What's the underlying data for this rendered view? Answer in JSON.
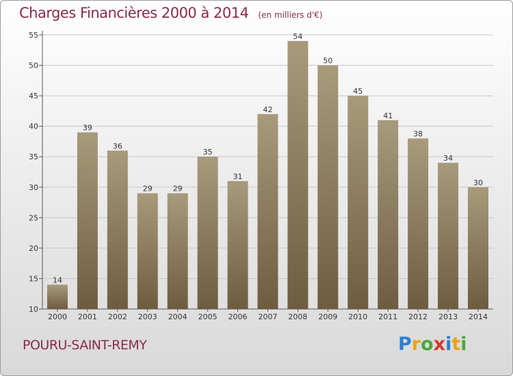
{
  "header": {
    "title": "Charges Financières 2000 à 2014",
    "subtitle": "(en milliers d'€)"
  },
  "footer": {
    "commune": "POURU-SAINT-REMY",
    "logo_letters": [
      "P",
      "r",
      "o",
      "x",
      "i",
      "t",
      "i"
    ],
    "logo_colors": [
      "#2a7fd0",
      "#e8a31a",
      "#49a83d",
      "#d53a2b",
      "#2a7fd0",
      "#e8a31a",
      "#49a83d"
    ]
  },
  "chart_data": {
    "type": "bar",
    "title": "Charges Financières 2000 à 2014",
    "subtitle": "(en milliers d'€)",
    "xlabel": "",
    "ylabel": "",
    "categories": [
      "2000",
      "2001",
      "2002",
      "2003",
      "2004",
      "2005",
      "2006",
      "2007",
      "2008",
      "2009",
      "2010",
      "2011",
      "2012",
      "2013",
      "2014"
    ],
    "values": [
      14,
      39,
      36,
      29,
      29,
      35,
      31,
      42,
      54,
      50,
      45,
      41,
      38,
      34,
      30
    ],
    "ylim": [
      10,
      55
    ],
    "yticks": [
      10,
      15,
      20,
      25,
      30,
      35,
      40,
      45,
      50,
      55
    ],
    "grid": true,
    "bar_color_top": "#a99a7c",
    "bar_color_bottom": "#6e5c40"
  }
}
